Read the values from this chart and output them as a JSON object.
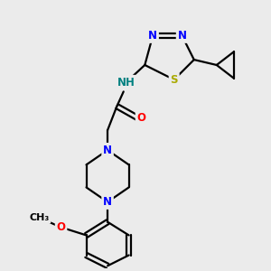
{
  "bg_color": "#ebebeb",
  "bond_color": "#000000",
  "bond_width": 1.6,
  "atom_colors": {
    "N": "#0000ff",
    "O": "#ff0000",
    "S": "#aaaa00",
    "H": "#008080",
    "C": "#000000"
  },
  "font_size": 8.5
}
